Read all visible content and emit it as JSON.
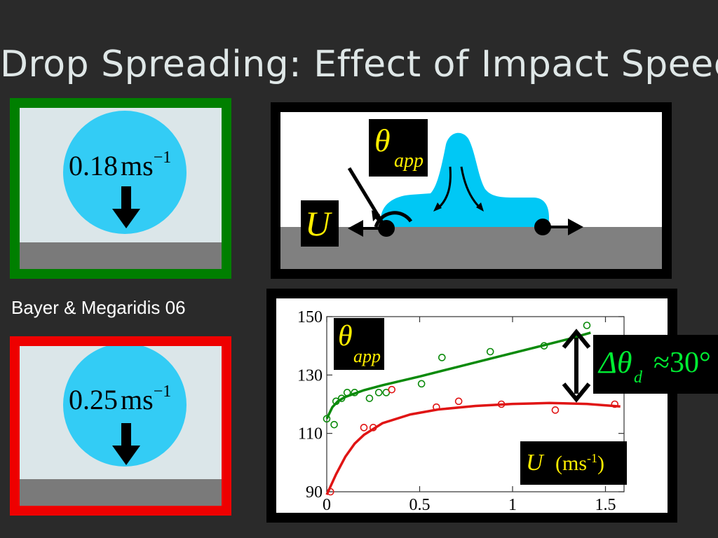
{
  "slide": {
    "title": "Drop Spreading: Effect of Impact Speed",
    "citation": "Bayer & Megaridis 06"
  },
  "panels": {
    "slow": {
      "speed_value": "0.18",
      "speed_unit": "ms",
      "speed_exp": "−1",
      "border_color": "#007f00"
    },
    "fast": {
      "speed_value": "0.25",
      "speed_unit": "ms",
      "speed_exp": "−1",
      "border_color": "#ee0000"
    }
  },
  "schematic": {
    "theta_symbol": "θ",
    "theta_sub": "app",
    "velocity_label": "U"
  },
  "chart_data": {
    "type": "scatter",
    "xlim": [
      0,
      1.6
    ],
    "ylim": [
      90,
      150
    ],
    "xticks": [
      "0",
      "0.5",
      "1",
      "1.5"
    ],
    "yticks": [
      "90",
      "110",
      "130",
      "150"
    ],
    "ylabel_symbol": "θ",
    "ylabel_sub": "app",
    "xlabel_symbol": "U",
    "xlabel_unit": "(ms",
    "xlabel_exp": "-1",
    "xlabel_close": ")",
    "annotation": {
      "delta": "Δθ",
      "sub": "d",
      "approx": "≈30°"
    },
    "series": [
      {
        "color": "#0a8a0a",
        "points": [
          [
            0.0,
            115
          ],
          [
            0.04,
            113
          ],
          [
            0.05,
            121
          ],
          [
            0.08,
            122
          ],
          [
            0.11,
            124
          ],
          [
            0.15,
            124
          ],
          [
            0.23,
            122
          ],
          [
            0.28,
            124
          ],
          [
            0.32,
            124
          ],
          [
            0.51,
            127
          ],
          [
            0.62,
            136
          ],
          [
            0.88,
            138
          ],
          [
            1.17,
            140
          ],
          [
            1.4,
            147
          ]
        ],
        "fit": [
          [
            0.0,
            115
          ],
          [
            0.03,
            119
          ],
          [
            0.06,
            121
          ],
          [
            0.1,
            122.5
          ],
          [
            0.2,
            124.8
          ],
          [
            0.3,
            126.5
          ],
          [
            0.5,
            129.5
          ],
          [
            0.7,
            132.7
          ],
          [
            0.9,
            135.9
          ],
          [
            1.1,
            139.1
          ],
          [
            1.3,
            142.3
          ],
          [
            1.42,
            144.5
          ]
        ]
      },
      {
        "color": "#e01414",
        "points": [
          [
            0.02,
            90
          ],
          [
            0.2,
            112
          ],
          [
            0.25,
            112
          ],
          [
            0.35,
            125
          ],
          [
            0.59,
            119
          ],
          [
            0.71,
            121
          ],
          [
            0.94,
            120
          ],
          [
            1.23,
            118
          ],
          [
            1.55,
            120
          ]
        ],
        "fit": [
          [
            0.0,
            89
          ],
          [
            0.05,
            96
          ],
          [
            0.1,
            102
          ],
          [
            0.15,
            106.5
          ],
          [
            0.2,
            109.5
          ],
          [
            0.3,
            113.5
          ],
          [
            0.45,
            116.5
          ],
          [
            0.6,
            118.2
          ],
          [
            0.8,
            119.4
          ],
          [
            1.0,
            120.1
          ],
          [
            1.2,
            120.4
          ],
          [
            1.4,
            120.1
          ],
          [
            1.58,
            119.2
          ]
        ]
      }
    ]
  }
}
